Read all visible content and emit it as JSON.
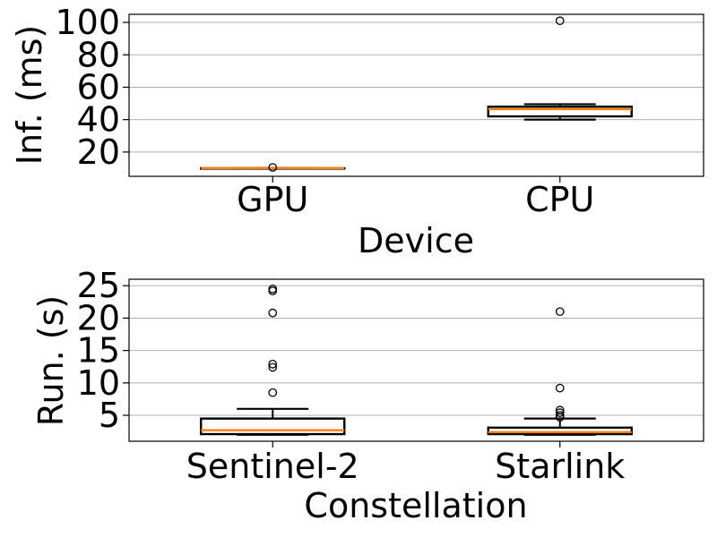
{
  "chart_data": [
    {
      "type": "box",
      "title": "",
      "xlabel": "Device",
      "ylabel": "Inf. (ms)",
      "ylim": [
        5,
        105
      ],
      "yticks": [
        20,
        40,
        60,
        80,
        100
      ],
      "grid": "y",
      "categories": [
        "GPU",
        "CPU"
      ],
      "boxes": [
        {
          "category": "GPU",
          "whisker_low": 10,
          "q1": 10,
          "median": 10,
          "q3": 10,
          "whisker_high": 10,
          "outliers": [
            10.5
          ]
        },
        {
          "category": "CPU",
          "whisker_low": 40,
          "q1": 42,
          "median": 46.5,
          "q3": 48,
          "whisker_high": 49.5,
          "outliers": [
            101
          ]
        }
      ]
    },
    {
      "type": "box",
      "title": "",
      "xlabel": "Constellation",
      "ylabel": "Run. (s)",
      "ylim": [
        1,
        26
      ],
      "yticks": [
        5,
        10,
        15,
        20,
        25
      ],
      "grid": "y",
      "categories": [
        "Sentinel-2",
        "Starlink"
      ],
      "boxes": [
        {
          "category": "Sentinel-2",
          "whisker_low": 2,
          "q1": 2.1,
          "median": 2.7,
          "q3": 4.5,
          "whisker_high": 6,
          "outliers": [
            8.5,
            12.4,
            12.9,
            20.8,
            24.2,
            24.5
          ]
        },
        {
          "category": "Starlink",
          "whisker_low": 2,
          "q1": 2.1,
          "median": 2.4,
          "q3": 3.1,
          "whisker_high": 4.5,
          "outliers": [
            4.7,
            5.0,
            5.4,
            5.8,
            9.2,
            21.0
          ]
        }
      ]
    }
  ],
  "colors": {
    "median": "#ff7f0e",
    "box": "#000000",
    "grid": "#b0b0b0"
  }
}
